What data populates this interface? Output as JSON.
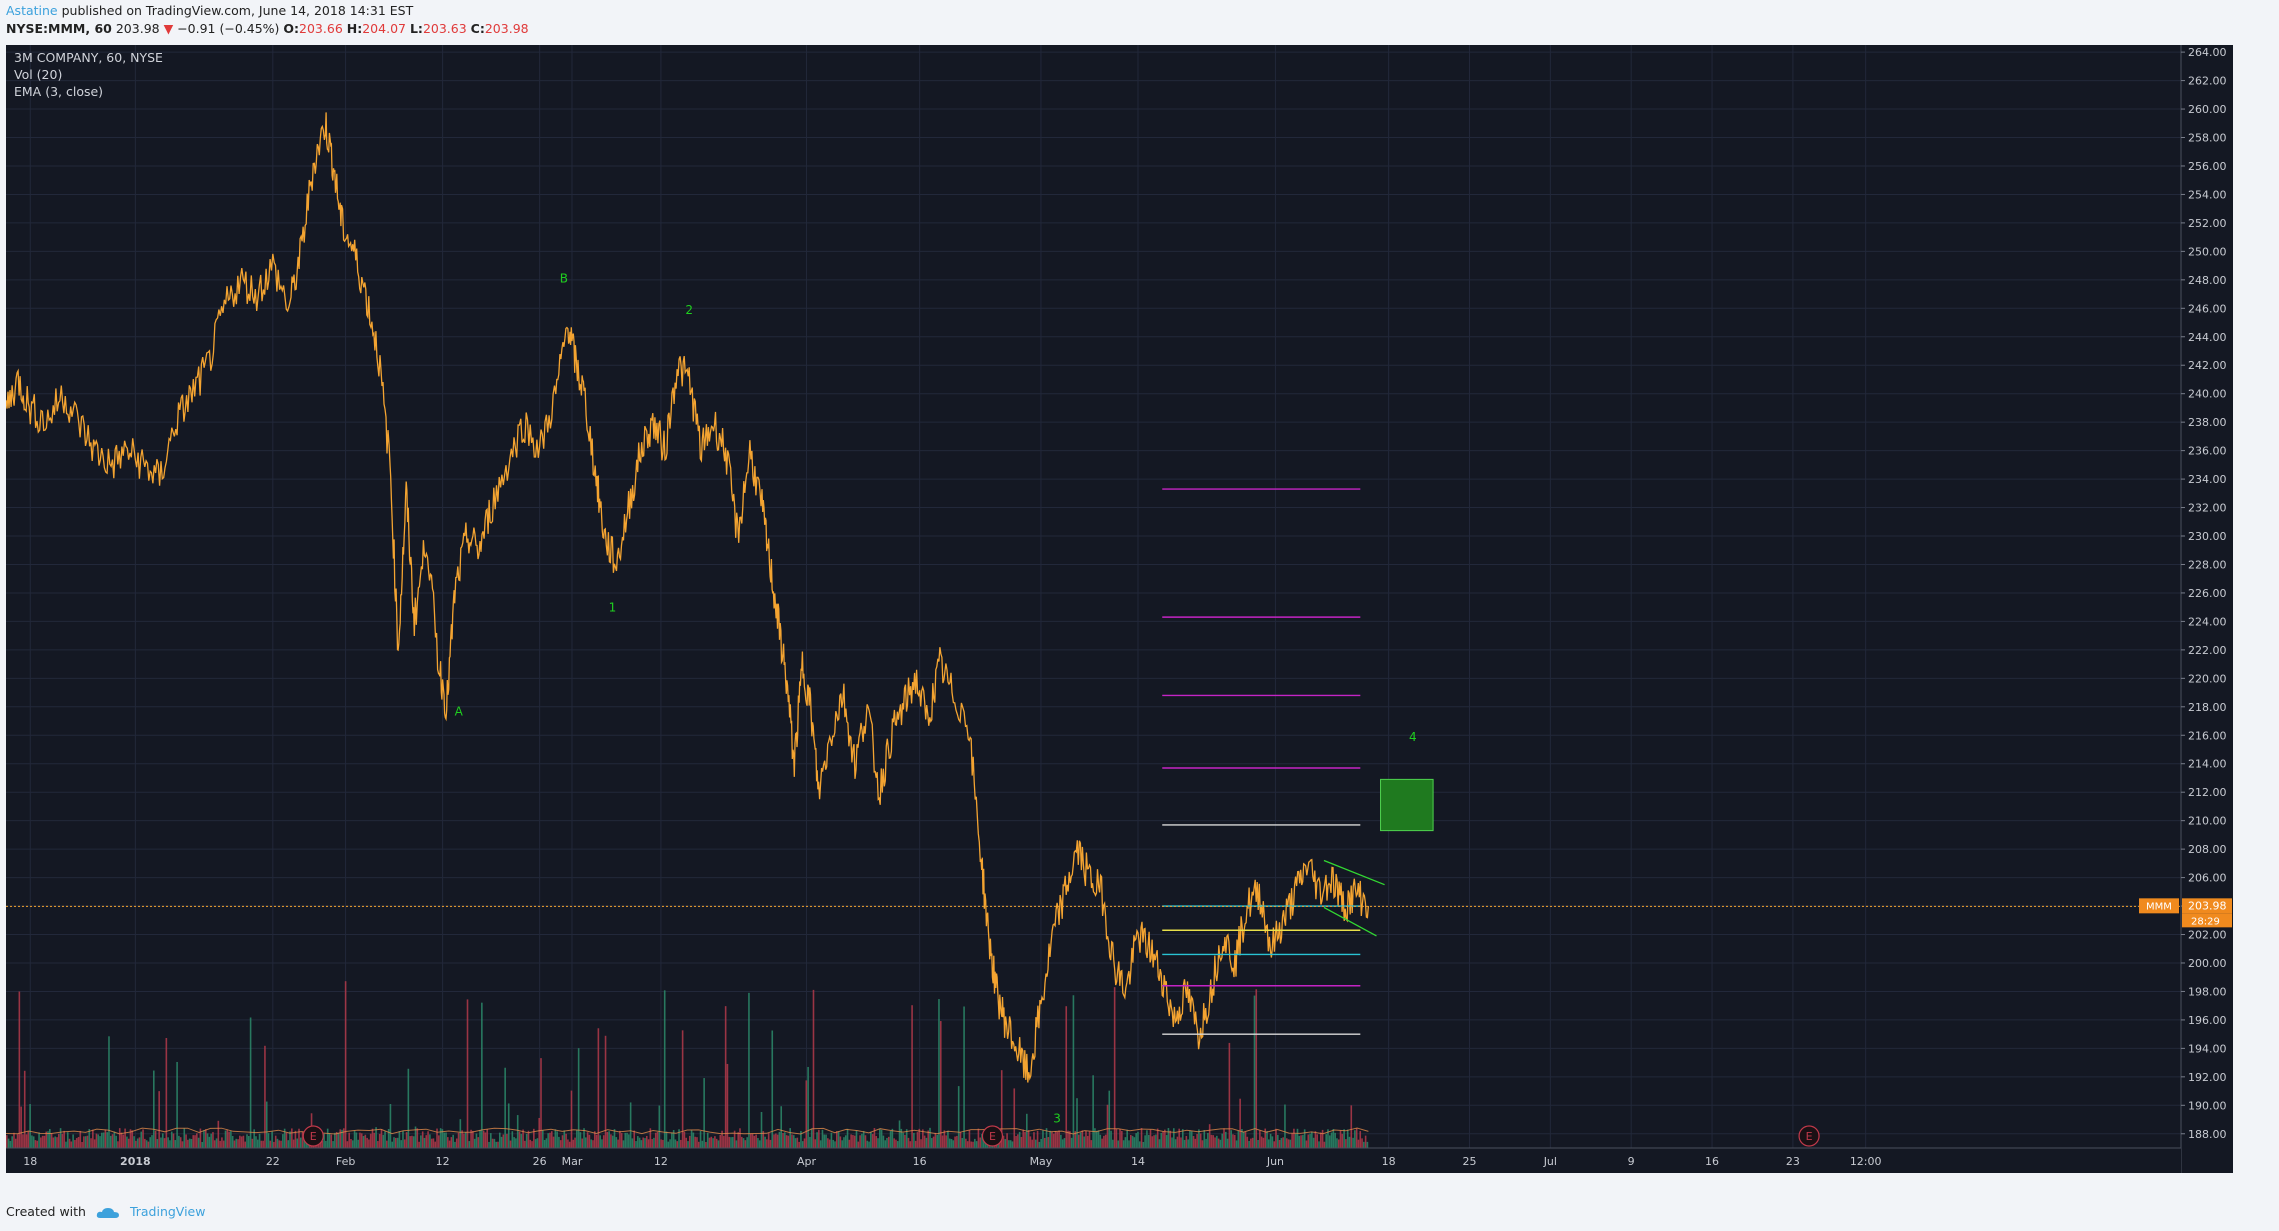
{
  "header": {
    "author": "Astatine",
    "published_text": "published on TradingView.com, June 14, 2018 14:31 EST",
    "symbol": "NYSE:MMM, 60",
    "last_price": "203.98",
    "change_arrow": "▼",
    "change": "−0.91 (−0.45%)",
    "o_label": "O:",
    "o_value": "203.66",
    "h_label": "H:",
    "h_value": "204.07",
    "l_label": "L:",
    "l_value": "203.63",
    "c_label": "C:",
    "c_value": "203.98"
  },
  "legend": {
    "title": "3M COMPANY, 60, NYSE",
    "volume": "Vol (20)",
    "ema": "EMA (3, close)"
  },
  "footer": {
    "created_with": "Created with",
    "brand": "TradingView"
  },
  "colors": {
    "background": "#141823",
    "price_line": "#f4a431",
    "wave_label": "#1fcf1f",
    "magenta_level": "#c524c5",
    "white_level": "#d8d8d8",
    "cyan_level": "#29c3d4",
    "yellow_level": "#e8e04a",
    "target_box": "#1f7a1f",
    "current_price_line": "#f4a431",
    "vol_up": "#2b8a6a",
    "vol_down": "#b23a4a",
    "earnings": "#c0394a"
  },
  "chart_data": {
    "type": "line",
    "title": "3M COMPANY, 60, NYSE",
    "y_axis": {
      "ticks": [
        "264.00",
        "262.00",
        "260.00",
        "258.00",
        "256.00",
        "254.00",
        "252.00",
        "250.00",
        "248.00",
        "246.00",
        "244.00",
        "242.00",
        "240.00",
        "238.00",
        "236.00",
        "234.00",
        "232.00",
        "230.00",
        "228.00",
        "226.00",
        "224.00",
        "222.00",
        "220.00",
        "218.00",
        "216.00",
        "214.00",
        "212.00",
        "210.00",
        "208.00",
        "206.00",
        "204.00",
        "202.00",
        "200.00",
        "198.00",
        "196.00",
        "194.00",
        "192.00",
        "190.00",
        "188.00"
      ],
      "ylim": [
        187,
        264.5
      ]
    },
    "x_axis": {
      "ticks": [
        {
          "label": "18",
          "x": 0.3
        },
        {
          "label": "2018",
          "x": 1.6
        },
        {
          "label": "22",
          "x": 3.3
        },
        {
          "label": "Feb",
          "x": 4.2
        },
        {
          "label": "12",
          "x": 5.4
        },
        {
          "label": "Feb26",
          "display": "26",
          "x": 6.6
        },
        {
          "label": "Mar",
          "x": 7.0
        },
        {
          "label": "12",
          "x": 8.1
        },
        {
          "label": "Apr",
          "x": 9.9
        },
        {
          "label": "16",
          "x": 11.3
        },
        {
          "label": "May",
          "x": 12.8
        },
        {
          "label": "14",
          "x": 14.0
        },
        {
          "label": "Jun",
          "x": 15.7
        },
        {
          "label": "18",
          "x": 17.1
        },
        {
          "label": "25",
          "x": 18.1
        },
        {
          "label": "Jul",
          "x": 19.1
        },
        {
          "label": "9",
          "x": 20.1
        },
        {
          "label": "16",
          "x": 21.1
        },
        {
          "label": "23",
          "x": 22.1
        },
        {
          "label": "12:00",
          "x": 23.0
        }
      ],
      "xlim": [
        0,
        26.9
      ]
    },
    "current_price": {
      "symbol": "MMM",
      "value": "203.98",
      "countdown": "28:29",
      "y": 203.98
    },
    "wave_labels": [
      {
        "text": "B",
        "x": 6.9,
        "y": 247.8
      },
      {
        "text": "2",
        "x": 8.45,
        "y": 245.6
      },
      {
        "text": "A",
        "x": 5.6,
        "y": 217.4
      },
      {
        "text": "1",
        "x": 7.5,
        "y": 224.7
      },
      {
        "text": "4",
        "x": 17.4,
        "y": 215.6
      },
      {
        "text": "3",
        "x": 13.0,
        "y": 188.8
      }
    ],
    "levels": [
      {
        "y": 233.3,
        "color": "magenta"
      },
      {
        "y": 224.3,
        "color": "magenta"
      },
      {
        "y": 218.8,
        "color": "magenta"
      },
      {
        "y": 213.7,
        "color": "magenta"
      },
      {
        "y": 209.7,
        "color": "white"
      },
      {
        "y": 204.0,
        "color": "cyan"
      },
      {
        "y": 202.3,
        "color": "yellow"
      },
      {
        "y": 200.6,
        "color": "cyan"
      },
      {
        "y": 198.4,
        "color": "magenta"
      },
      {
        "y": 195.0,
        "color": "white"
      }
    ],
    "levels_x": [
      14.3,
      16.75
    ],
    "target_box": {
      "x0": 17.0,
      "x1": 17.65,
      "y0": 209.3,
      "y1": 212.9
    },
    "wedge": {
      "upper": [
        [
          16.3,
          207.2
        ],
        [
          17.05,
          205.5
        ]
      ],
      "lower": [
        [
          16.3,
          203.9
        ],
        [
          16.95,
          201.9
        ]
      ]
    },
    "earnings_markers": [
      3.8,
      12.2,
      22.3
    ],
    "series": [
      {
        "x": [
          0,
          0.15,
          0.3,
          0.5,
          0.7,
          0.9,
          1.1,
          1.3,
          1.5,
          1.7,
          1.9,
          2.1,
          2.3,
          2.5,
          2.7,
          2.9,
          3.1,
          3.3,
          3.5,
          3.65,
          3.8,
          3.95,
          4.05,
          4.15,
          4.3,
          4.45,
          4.6,
          4.75,
          4.85,
          4.95,
          5.05,
          5.2,
          5.35,
          5.45,
          5.55,
          5.7,
          5.85,
          6.0,
          6.2,
          6.4,
          6.6,
          6.8,
          6.95,
          7.05,
          7.15,
          7.3,
          7.4,
          7.55,
          7.7,
          7.85,
          8.0,
          8.15,
          8.3,
          8.45,
          8.6,
          8.75,
          8.9,
          9.05,
          9.2,
          9.35,
          9.45,
          9.55,
          9.65,
          9.75,
          9.85,
          9.95,
          10.05,
          10.2,
          10.35,
          10.5,
          10.65,
          10.8,
          10.95,
          11.1,
          11.25,
          11.4,
          11.55,
          11.7,
          11.9,
          12.05,
          12.15,
          12.25,
          12.35,
          12.5,
          12.65,
          12.8,
          12.95,
          13.1,
          13.25,
          13.4,
          13.55,
          13.7,
          13.85,
          14.0,
          14.15,
          14.3,
          14.45,
          14.6,
          14.75,
          14.9,
          15.05,
          15.2,
          15.35,
          15.5,
          15.65,
          15.8,
          15.95,
          16.1,
          16.25,
          16.4,
          16.55,
          16.7,
          16.85
        ],
        "y": [
          239,
          241,
          239,
          238,
          240,
          238,
          236,
          235,
          236,
          235,
          234,
          238,
          240,
          242,
          246,
          248,
          247,
          249,
          246,
          250,
          256,
          259,
          256,
          252,
          250,
          247,
          243,
          235,
          222,
          233,
          224,
          230,
          221,
          218,
          226,
          230,
          229,
          232,
          235,
          238,
          236,
          240,
          245,
          242,
          240,
          234,
          230,
          228,
          232,
          236,
          238,
          236,
          242,
          241,
          236,
          238,
          236,
          230,
          236,
          232,
          228,
          224,
          220,
          214,
          221,
          218,
          212,
          216,
          219,
          214,
          218,
          212,
          216,
          218,
          220,
          217,
          221,
          219,
          217,
          208,
          202,
          198,
          196,
          194,
          192,
          197,
          202,
          205,
          208,
          206,
          205,
          200,
          198,
          202,
          201,
          199,
          196,
          198,
          195,
          198,
          202,
          200,
          204,
          205,
          201,
          203,
          205,
          207,
          205,
          206,
          204,
          205,
          204
        ]
      }
    ],
    "volume": {
      "label": "Vol (20)",
      "max_bar_fraction": 0.2
    }
  }
}
